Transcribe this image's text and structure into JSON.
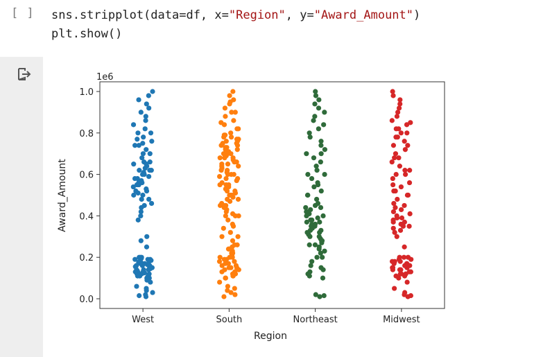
{
  "code_cell": {
    "run_bracket": "[ ]",
    "line1_call": "sns.stripplot(data=df, x=",
    "line1_x_value": "\"Region\"",
    "line1_sep": ", y=",
    "line1_y_value": "\"Award_Amount\"",
    "line1_close": ")",
    "line2": "plt.show()"
  },
  "output": {
    "icon": "output-redirect-icon"
  },
  "chart_data": {
    "type": "scatter",
    "title": "",
    "xlabel": "Region",
    "ylabel": "Award_Amount",
    "y_offset_label": "1e6",
    "categories": [
      "West",
      "South",
      "Northeast",
      "Midwest"
    ],
    "ylim": [
      0,
      1000000
    ],
    "yticks": [
      0.0,
      0.2,
      0.4,
      0.6,
      0.8,
      1.0
    ],
    "ytick_labels": [
      "0.0",
      "0.2",
      "0.4",
      "0.6",
      "0.8",
      "1.0"
    ],
    "grid": false,
    "legend": "none",
    "colors": {
      "West": "#1f77b4",
      "South": "#ff7f0e",
      "Northeast": "#2f6b3a",
      "Midwest": "#d62728"
    },
    "series": [
      {
        "category": "West",
        "values_millions": [
          0.01,
          0.015,
          0.02,
          0.03,
          0.04,
          0.05,
          0.06,
          0.08,
          0.09,
          0.1,
          0.105,
          0.11,
          0.115,
          0.12,
          0.125,
          0.13,
          0.135,
          0.14,
          0.145,
          0.15,
          0.155,
          0.16,
          0.165,
          0.17,
          0.175,
          0.18,
          0.185,
          0.19,
          0.195,
          0.2,
          0.12,
          0.14,
          0.16,
          0.18,
          0.2,
          0.13,
          0.15,
          0.17,
          0.19,
          0.11,
          0.12,
          0.15,
          0.18,
          0.2,
          0.14,
          0.16,
          0.1,
          0.13,
          0.17,
          0.19,
          0.25,
          0.28,
          0.3,
          0.38,
          0.4,
          0.42,
          0.44,
          0.46,
          0.48,
          0.5,
          0.51,
          0.52,
          0.53,
          0.54,
          0.55,
          0.56,
          0.57,
          0.58,
          0.59,
          0.6,
          0.61,
          0.62,
          0.63,
          0.64,
          0.65,
          0.66,
          0.68,
          0.7,
          0.72,
          0.74,
          0.75,
          0.76,
          0.77,
          0.78,
          0.8,
          0.82,
          0.84,
          0.86,
          0.88,
          0.9,
          0.92,
          0.94,
          0.96,
          0.98,
          1.0,
          0.5,
          0.55,
          0.6,
          0.65,
          0.7,
          0.45,
          0.52,
          0.58,
          0.62,
          0.74,
          0.8,
          0.56,
          0.48,
          0.62,
          0.66
        ]
      },
      {
        "category": "South",
        "values_millions": [
          0.01,
          0.02,
          0.04,
          0.06,
          0.08,
          0.1,
          0.11,
          0.12,
          0.13,
          0.14,
          0.15,
          0.16,
          0.17,
          0.18,
          0.19,
          0.2,
          0.21,
          0.22,
          0.23,
          0.24,
          0.25,
          0.26,
          0.28,
          0.3,
          0.32,
          0.34,
          0.36,
          0.38,
          0.4,
          0.41,
          0.42,
          0.43,
          0.44,
          0.45,
          0.46,
          0.47,
          0.48,
          0.49,
          0.5,
          0.51,
          0.52,
          0.53,
          0.54,
          0.55,
          0.56,
          0.57,
          0.58,
          0.59,
          0.6,
          0.61,
          0.62,
          0.63,
          0.64,
          0.65,
          0.66,
          0.67,
          0.68,
          0.69,
          0.7,
          0.71,
          0.72,
          0.73,
          0.74,
          0.75,
          0.76,
          0.77,
          0.78,
          0.79,
          0.8,
          0.82,
          0.84,
          0.86,
          0.88,
          0.9,
          0.92,
          0.94,
          0.96,
          0.98,
          1.0,
          0.12,
          0.14,
          0.16,
          0.18,
          0.2,
          0.13,
          0.15,
          0.17,
          0.19,
          0.11,
          0.22,
          0.5,
          0.55,
          0.6,
          0.65,
          0.7,
          0.72,
          0.74,
          0.76,
          0.78,
          0.62,
          0.66,
          0.68,
          0.45,
          0.48,
          0.52,
          0.58,
          0.64,
          0.68,
          0.7,
          0.73,
          0.75,
          0.77,
          0.79,
          0.3,
          0.35,
          0.4,
          0.26,
          0.24,
          0.2,
          0.15,
          0.1,
          0.05,
          0.03,
          0.9,
          0.95,
          0.85,
          0.82,
          0.6,
          0.55,
          0.5,
          0.45,
          0.4
        ]
      },
      {
        "category": "Northeast",
        "values_millions": [
          0.01,
          0.015,
          0.02,
          0.1,
          0.11,
          0.12,
          0.13,
          0.14,
          0.15,
          0.16,
          0.18,
          0.2,
          0.22,
          0.24,
          0.25,
          0.26,
          0.27,
          0.28,
          0.29,
          0.3,
          0.31,
          0.32,
          0.33,
          0.34,
          0.35,
          0.36,
          0.37,
          0.38,
          0.39,
          0.4,
          0.41,
          0.42,
          0.43,
          0.44,
          0.45,
          0.46,
          0.48,
          0.5,
          0.52,
          0.54,
          0.55,
          0.56,
          0.58,
          0.6,
          0.62,
          0.64,
          0.66,
          0.68,
          0.7,
          0.72,
          0.74,
          0.76,
          0.78,
          0.8,
          0.82,
          0.84,
          0.86,
          0.88,
          0.9,
          0.92,
          0.94,
          0.96,
          0.98,
          1.0,
          0.3,
          0.32,
          0.35,
          0.38,
          0.4,
          0.42,
          0.28,
          0.26,
          0.36,
          0.44,
          0.5,
          0.6,
          0.7,
          0.2,
          0.23,
          0.33,
          0.37
        ]
      },
      {
        "category": "Midwest",
        "values_millions": [
          0.01,
          0.015,
          0.02,
          0.03,
          0.05,
          0.08,
          0.1,
          0.11,
          0.12,
          0.13,
          0.14,
          0.15,
          0.16,
          0.17,
          0.18,
          0.19,
          0.2,
          0.12,
          0.14,
          0.16,
          0.18,
          0.2,
          0.13,
          0.15,
          0.17,
          0.19,
          0.11,
          0.12,
          0.15,
          0.18,
          0.2,
          0.14,
          0.16,
          0.25,
          0.3,
          0.32,
          0.34,
          0.35,
          0.36,
          0.37,
          0.38,
          0.39,
          0.4,
          0.42,
          0.44,
          0.46,
          0.48,
          0.5,
          0.52,
          0.54,
          0.56,
          0.58,
          0.6,
          0.62,
          0.64,
          0.66,
          0.68,
          0.7,
          0.72,
          0.74,
          0.76,
          0.78,
          0.8,
          0.82,
          0.84,
          0.86,
          0.88,
          0.9,
          0.92,
          0.94,
          0.96,
          0.98,
          1.0,
          0.35,
          0.37,
          0.39,
          0.41,
          0.5,
          0.52,
          0.55,
          0.6,
          0.62,
          0.8,
          0.82,
          0.85,
          0.78,
          0.74,
          0.68,
          0.45,
          0.43,
          0.33,
          0.36
        ]
      }
    ]
  }
}
